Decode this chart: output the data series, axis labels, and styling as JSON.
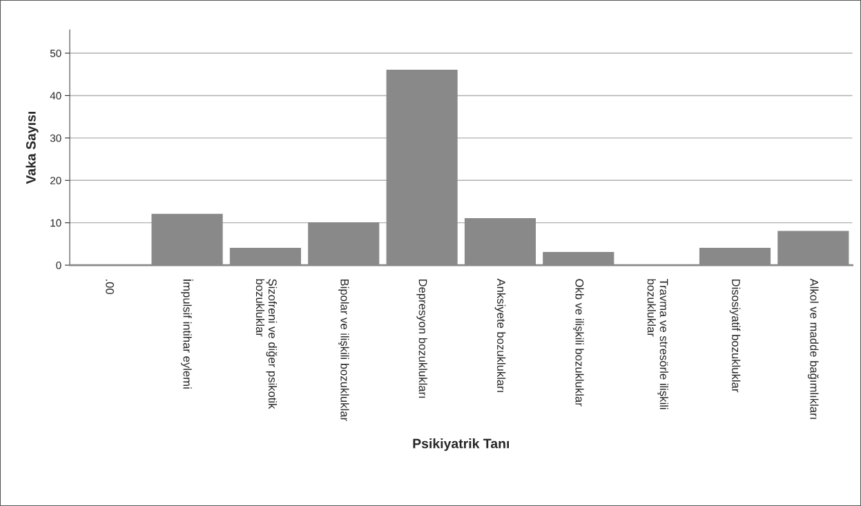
{
  "chart_data": {
    "type": "bar",
    "xlabel": "Psikiyatrik Tanı",
    "ylabel": "Vaka Sayısı",
    "categories": [
      ".00",
      "İmpulsif intihar eylemi",
      "Şizofreni ve diğer psikotik\nbozukluklar",
      "Bipolar ve ilişkili bozukluklar",
      "Depresyon bozuklukları",
      "Anksiyete bozuklukları",
      "Okb ve ilişkili bozukluklar",
      "Travma ve stresörle ilişkili\nbozukluklar",
      "Disosiyatif bozukluklar",
      "Alkol ve madde bağımlıkları"
    ],
    "values": [
      0,
      12,
      4,
      10,
      46,
      11,
      3,
      0,
      4,
      8
    ],
    "color": "#898989",
    "ylim": [
      0,
      55.5
    ],
    "yticks": [
      0,
      10,
      20,
      30,
      40,
      50
    ],
    "grid": "y"
  }
}
